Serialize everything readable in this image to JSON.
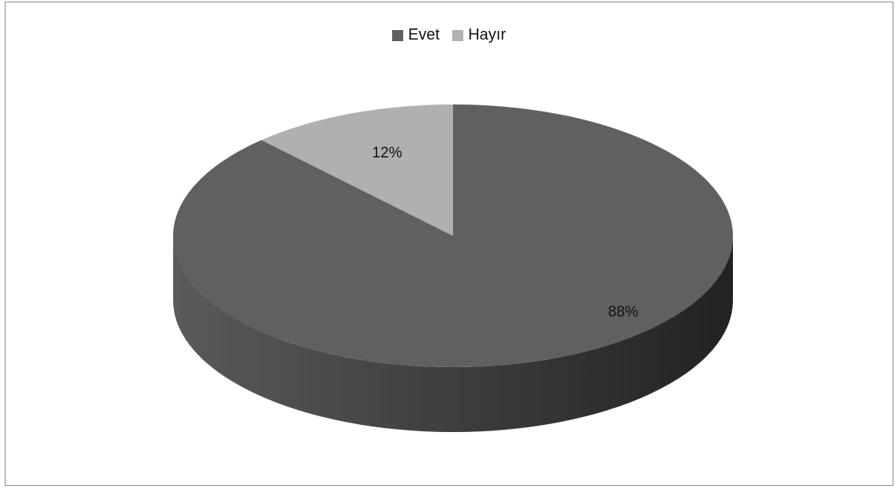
{
  "chart_data": {
    "type": "pie",
    "title": "",
    "legend_position": "top",
    "three_d": true,
    "series": [
      {
        "name": "",
        "categories": [
          "Evet",
          "Hayır"
        ],
        "values": [
          88,
          12
        ],
        "labels": [
          "88%",
          "12%"
        ]
      }
    ],
    "colors": {
      "Evet": "#606060",
      "Hayır": "#b0b0b0"
    }
  },
  "legend": {
    "items": [
      {
        "label": "Evet",
        "color": "#606060"
      },
      {
        "label": "Hayır",
        "color": "#b0b0b0"
      }
    ]
  }
}
